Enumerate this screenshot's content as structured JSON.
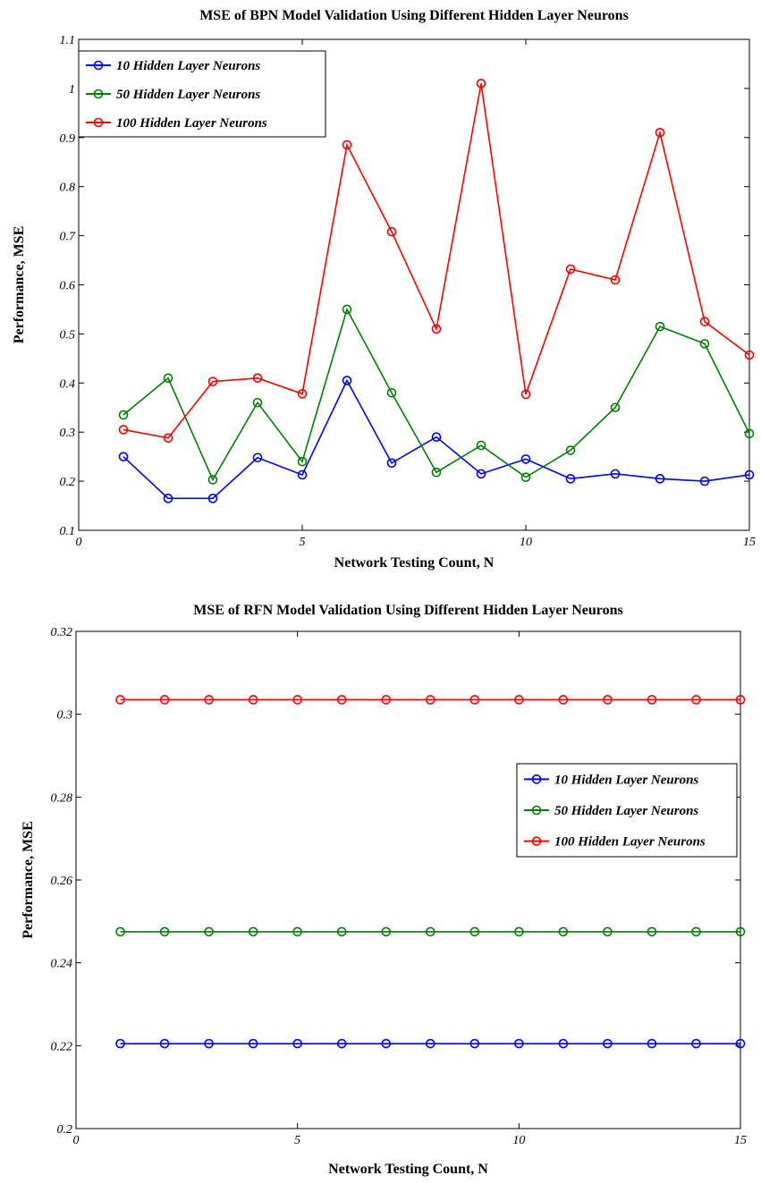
{
  "chart_data": [
    {
      "type": "line",
      "title": "MSE of BPN Model Validation Using Different Hidden Layer Neurons",
      "xlabel": "Network Testing Count, N",
      "ylabel": "Performance, MSE",
      "xlim": [
        0,
        15
      ],
      "ylim": [
        0.1,
        1.1
      ],
      "xticks": [
        "0",
        "5",
        "10",
        "15"
      ],
      "yticks": [
        "0.1",
        "0.2",
        "0.3",
        "0.4",
        "0.5",
        "0.6",
        "0.7",
        "0.8",
        "0.9",
        "1",
        "1.1"
      ],
      "grid": false,
      "legend_position": "top-left",
      "x": [
        1,
        2,
        3,
        4,
        5,
        6,
        7,
        8,
        9,
        10,
        11,
        12,
        13,
        14,
        15
      ],
      "series": [
        {
          "name": "10 Hidden Layer Neurons",
          "color": "#0000ff",
          "values": [
            0.25,
            0.165,
            0.165,
            0.248,
            0.213,
            0.405,
            0.237,
            0.29,
            0.215,
            0.245,
            0.205,
            0.215,
            0.205,
            0.2,
            0.213
          ]
        },
        {
          "name": "50 Hidden Layer Neurons",
          "color": "#008000",
          "values": [
            0.335,
            0.41,
            0.203,
            0.36,
            0.24,
            0.55,
            0.38,
            0.218,
            0.273,
            0.208,
            0.263,
            0.35,
            0.515,
            0.48,
            0.297
          ]
        },
        {
          "name": "100 Hidden Layer Neurons",
          "color": "#ff0000",
          "values": [
            0.305,
            0.288,
            0.403,
            0.41,
            0.378,
            0.885,
            0.708,
            0.51,
            1.01,
            0.377,
            0.632,
            0.61,
            0.91,
            0.525,
            0.457
          ]
        }
      ]
    },
    {
      "type": "line",
      "title": "MSE of RFN Model Validation Using Different Hidden Layer Neurons",
      "xlabel": "Network Testing Count, N",
      "ylabel": "Performance, MSE",
      "xlim": [
        0,
        15
      ],
      "ylim": [
        0.2,
        0.32
      ],
      "xticks": [
        "0",
        "5",
        "10",
        "15"
      ],
      "yticks": [
        "0.2",
        "0.22",
        "0.24",
        "0.26",
        "0.28",
        "0.3",
        "0.32"
      ],
      "grid": false,
      "legend_position": "right",
      "x": [
        1,
        2,
        3,
        4,
        5,
        6,
        7,
        8,
        9,
        10,
        11,
        12,
        13,
        14,
        15
      ],
      "series": [
        {
          "name": "10 Hidden Layer Neurons",
          "color": "#0000ff",
          "values": [
            0.2205,
            0.2205,
            0.2205,
            0.2205,
            0.2205,
            0.2205,
            0.2205,
            0.2205,
            0.2205,
            0.2205,
            0.2205,
            0.2205,
            0.2205,
            0.2205,
            0.2205
          ]
        },
        {
          "name": "50 Hidden Layer Neurons",
          "color": "#008000",
          "values": [
            0.2475,
            0.2475,
            0.2475,
            0.2475,
            0.2475,
            0.2475,
            0.2475,
            0.2475,
            0.2475,
            0.2475,
            0.2475,
            0.2475,
            0.2475,
            0.2475,
            0.2475
          ]
        },
        {
          "name": "100 Hidden Layer Neurons",
          "color": "#ff0000",
          "values": [
            0.3035,
            0.3035,
            0.3035,
            0.3035,
            0.3035,
            0.3035,
            0.3035,
            0.3035,
            0.3035,
            0.3035,
            0.3035,
            0.3035,
            0.3035,
            0.3035,
            0.3035
          ]
        }
      ]
    }
  ]
}
